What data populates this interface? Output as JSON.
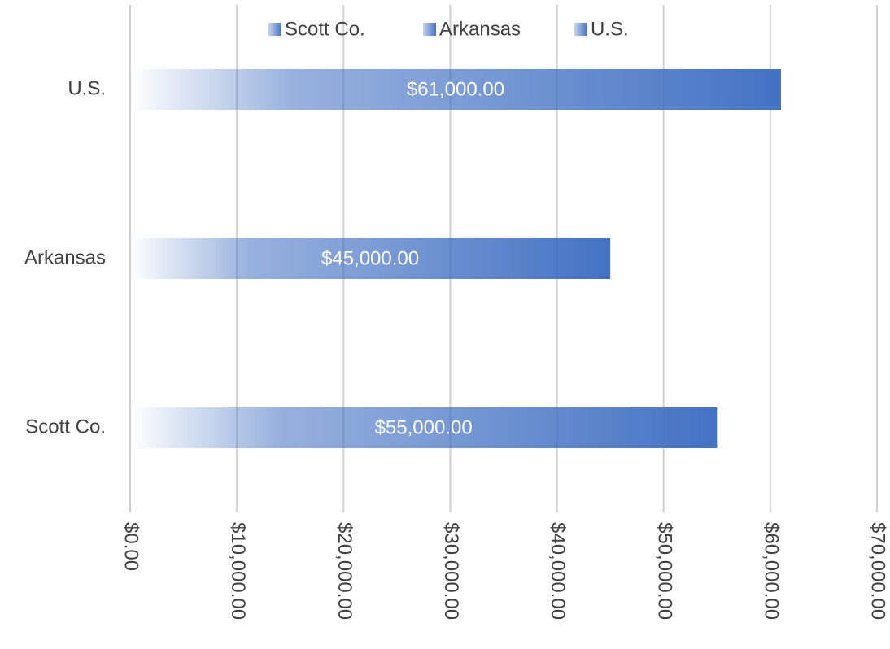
{
  "chart_data": {
    "type": "bar",
    "orientation": "horizontal",
    "categories": [
      "Scott Co.",
      "Arkansas",
      "U.S."
    ],
    "series": [
      {
        "name": "Scott Co.",
        "color": "#4472c4",
        "values": [
          55000,
          null,
          null
        ],
        "value_labels": [
          "$55,000.00",
          null,
          null
        ]
      },
      {
        "name": "Arkansas",
        "color": "#4472c4",
        "values": [
          null,
          45000,
          null
        ],
        "value_labels": [
          null,
          "$45,000.00",
          null
        ]
      },
      {
        "name": "U.S.",
        "color": "#4472c4",
        "values": [
          null,
          null,
          61000
        ],
        "value_labels": [
          null,
          null,
          "$61,000.00"
        ]
      }
    ],
    "xlim": [
      0,
      70000
    ],
    "xticks": [
      {
        "value": 0,
        "label": "$0.00"
      },
      {
        "value": 10000,
        "label": "$10,000.00"
      },
      {
        "value": 20000,
        "label": "$20,000.00"
      },
      {
        "value": 30000,
        "label": "$30,000.00"
      },
      {
        "value": 40000,
        "label": "$40,000.00"
      },
      {
        "value": 50000,
        "label": "$50,000.00"
      },
      {
        "value": 60000,
        "label": "$60,000.00"
      },
      {
        "value": 70000,
        "label": "$70,000.00"
      }
    ],
    "grid": true,
    "legend": "top"
  }
}
